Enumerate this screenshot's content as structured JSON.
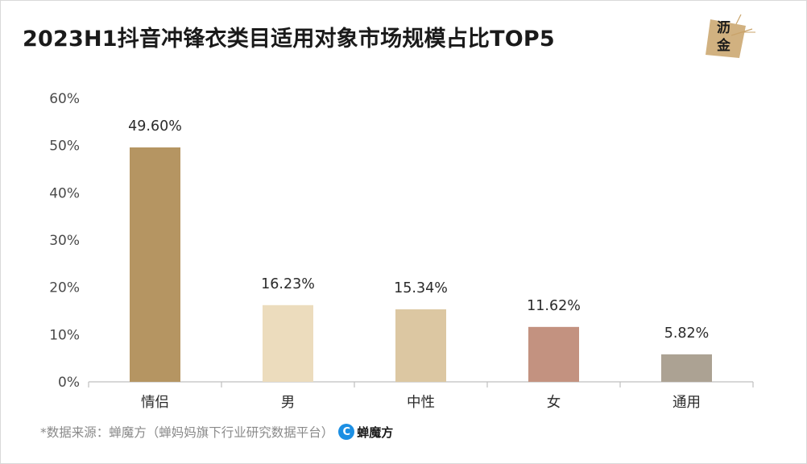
{
  "title": "2023H1抖音冲锋衣类目适用对象市场规模占比TOP5",
  "logo": {
    "line1": "沥",
    "line2": "金",
    "accent": "#c9a36a"
  },
  "source": {
    "text": "*数据来源：蝉魔方（蝉妈妈旗下行业研究数据平台）",
    "brand_name": "蝉魔方",
    "brand_icon": "C"
  },
  "chart_data": {
    "type": "bar",
    "title": "2023H1抖音冲锋衣类目适用对象市场规模占比TOP5",
    "categories": [
      "情侣",
      "男",
      "中性",
      "女",
      "通用"
    ],
    "values": [
      49.6,
      16.23,
      15.34,
      11.62,
      5.82
    ],
    "value_labels": [
      "49.60%",
      "16.23%",
      "15.34%",
      "11.62%",
      "5.82%"
    ],
    "colors": [
      "#b59562",
      "#ecdcbd",
      "#dcc7a2",
      "#c39280",
      "#aca293"
    ],
    "ylim": [
      0,
      60
    ],
    "yticks": [
      0,
      10,
      20,
      30,
      40,
      50,
      60
    ],
    "ytick_labels": [
      "0%",
      "10%",
      "20%",
      "30%",
      "40%",
      "50%",
      "60%"
    ],
    "xlabel": "",
    "ylabel": "",
    "grid": false
  }
}
